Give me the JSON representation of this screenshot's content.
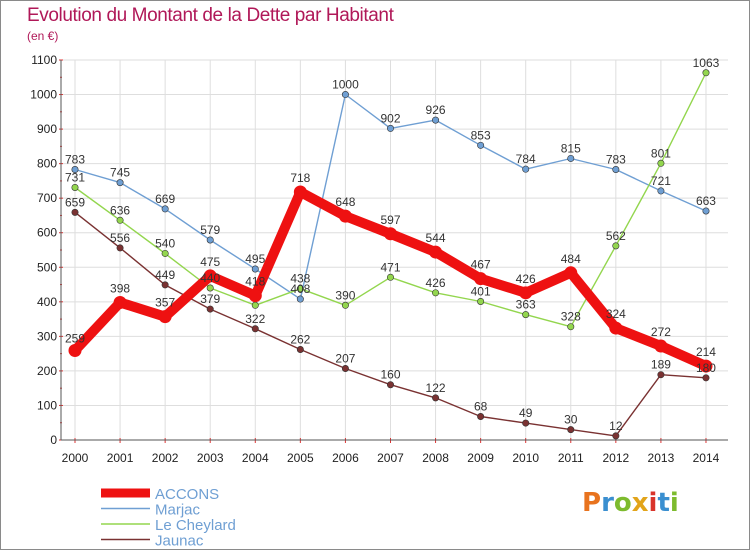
{
  "header": {
    "title": "Evolution du Montant de la Dette par Habitant",
    "unit": "(en €)"
  },
  "logo": {
    "text": "Proxiti",
    "letters": [
      {
        "ch": "P",
        "color": "#e8731e"
      },
      {
        "ch": "r",
        "color": "#3a8fd0"
      },
      {
        "ch": "o",
        "color": "#7dbb2e"
      },
      {
        "ch": "x",
        "color": "#e2a41a"
      },
      {
        "ch": "i",
        "color": "#d9342b"
      },
      {
        "ch": "t",
        "color": "#3a8fd0"
      },
      {
        "ch": "i",
        "color": "#7dbb2e"
      }
    ]
  },
  "chart_data": {
    "type": "line",
    "title": "Evolution du Montant de la Dette par Habitant",
    "ylabel": "(en €)",
    "xlabel": "",
    "x": [
      "2000",
      "2001",
      "2002",
      "2003",
      "2004",
      "2005",
      "2006",
      "2007",
      "2008",
      "2009",
      "2010",
      "2011",
      "2012",
      "2013",
      "2014"
    ],
    "ylim": [
      0,
      1100
    ],
    "yticks": [
      0,
      100,
      200,
      300,
      400,
      500,
      600,
      700,
      800,
      900,
      1000,
      1100
    ],
    "grid": true,
    "legend_position": "bottom-left",
    "series": [
      {
        "name": "ACCONS",
        "color": "#ee1111",
        "emphasis": true,
        "values": [
          259,
          398,
          357,
          475,
          418,
          718,
          648,
          597,
          544,
          467,
          426,
          484,
          324,
          272,
          214
        ],
        "labels": [
          "259",
          "398",
          "357",
          "475",
          "418",
          "718",
          "648",
          "597",
          "544",
          "467",
          "426",
          "484",
          "324",
          "272",
          "214"
        ]
      },
      {
        "name": "Marjac",
        "color": "#6f9fd3",
        "values": [
          783,
          745,
          669,
          579,
          495,
          408,
          1000,
          902,
          926,
          853,
          784,
          815,
          783,
          721,
          663
        ],
        "labels": [
          "783",
          "745",
          "669",
          "579",
          "495",
          "408",
          "1000",
          "902",
          "926",
          "853",
          "784",
          "815",
          "783",
          "721",
          "663"
        ]
      },
      {
        "name": "Le Cheylard",
        "color": "#93d64e",
        "values": [
          731,
          636,
          540,
          440,
          390,
          438,
          390,
          471,
          426,
          401,
          363,
          328,
          562,
          801,
          1063
        ],
        "labels": [
          "731",
          "636",
          "540",
          "440",
          "",
          "438",
          "390",
          "471",
          "426",
          "401",
          "363",
          "328",
          "562",
          "801",
          "1063"
        ]
      },
      {
        "name": "Jaunac",
        "color": "#7a3232",
        "values": [
          659,
          556,
          449,
          379,
          322,
          262,
          207,
          160,
          122,
          68,
          49,
          30,
          12,
          189,
          180
        ],
        "labels": [
          "659",
          "556",
          "449",
          "379",
          "322",
          "262",
          "207",
          "160",
          "122",
          "68",
          "49",
          "30",
          "12",
          "189",
          "180"
        ]
      }
    ]
  }
}
